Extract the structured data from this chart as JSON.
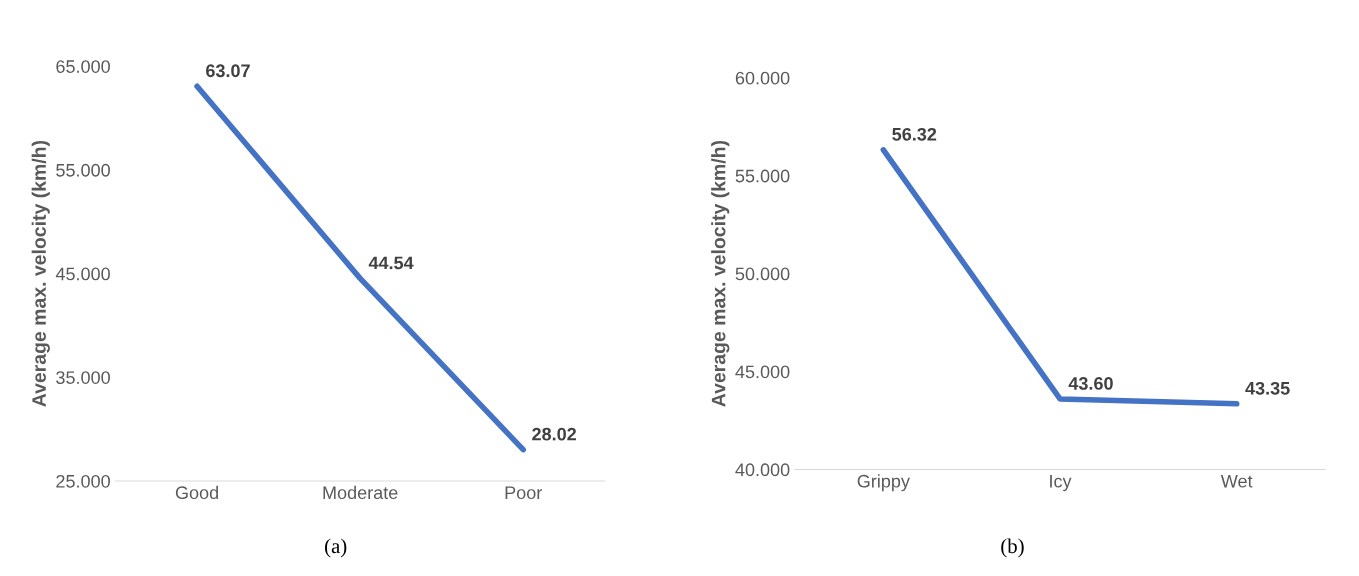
{
  "chart_data": [
    {
      "type": "line",
      "ylabel": "Average max. velocity (km/h)",
      "categories": [
        "Good",
        "Moderate",
        "Poor"
      ],
      "series": [
        {
          "color": "#4472c4",
          "values": [
            63.07,
            44.54,
            28.02
          ],
          "value_labels": [
            "63.07",
            "44.54",
            "28.02"
          ]
        }
      ],
      "ylim": [
        25,
        65
      ],
      "yticks": [
        {
          "value": 25,
          "label": "25.000"
        },
        {
          "value": 35,
          "label": "35.000"
        },
        {
          "value": 45,
          "label": "45.000"
        },
        {
          "value": 55,
          "label": "55.000"
        },
        {
          "value": 65,
          "label": "65.000"
        }
      ],
      "grid": false,
      "legend": false,
      "marker": "none",
      "line_style": "solid",
      "annotations": [
        "(a)"
      ]
    },
    {
      "type": "line",
      "ylabel": "Average max. velocity (km/h)",
      "categories": [
        "Grippy",
        "Icy",
        "Wet"
      ],
      "series": [
        {
          "color": "#4472c4",
          "values": [
            56.32,
            43.6,
            43.35
          ],
          "value_labels": [
            "56.32",
            "43.60",
            "43.35"
          ]
        }
      ],
      "ylim": [
        40,
        60
      ],
      "yticks": [
        {
          "value": 40,
          "label": "40.000"
        },
        {
          "value": 45,
          "label": "45.000"
        },
        {
          "value": 50,
          "label": "50.000"
        },
        {
          "value": 55,
          "label": "55.000"
        },
        {
          "value": 60,
          "label": "60.000"
        }
      ],
      "grid": false,
      "legend": false,
      "marker": "none",
      "line_style": "solid",
      "annotations": [
        "(b)"
      ]
    }
  ]
}
